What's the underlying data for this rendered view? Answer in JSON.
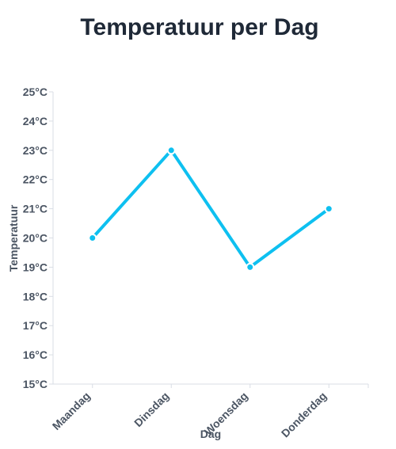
{
  "chart_data": {
    "type": "line",
    "title": "Temperatuur per Dag",
    "xlabel": "Dag",
    "ylabel": "Temperatuur",
    "categories": [
      "Maandag",
      "Dinsdag",
      "Woensdag",
      "Donderdag"
    ],
    "series": [
      {
        "values": [
          20,
          23,
          19,
          21
        ],
        "color": "#0ec0f0"
      }
    ],
    "ylim": [
      15,
      25
    ],
    "y_ticks": [
      15,
      16,
      17,
      18,
      19,
      20,
      21,
      22,
      23,
      24,
      25
    ],
    "y_tick_labels": [
      "15°C",
      "16°C",
      "17°C",
      "18°C",
      "19°C",
      "20°C",
      "21°C",
      "22°C",
      "23°C",
      "24°C",
      "25°C"
    ],
    "grid": false,
    "legend": "none"
  }
}
